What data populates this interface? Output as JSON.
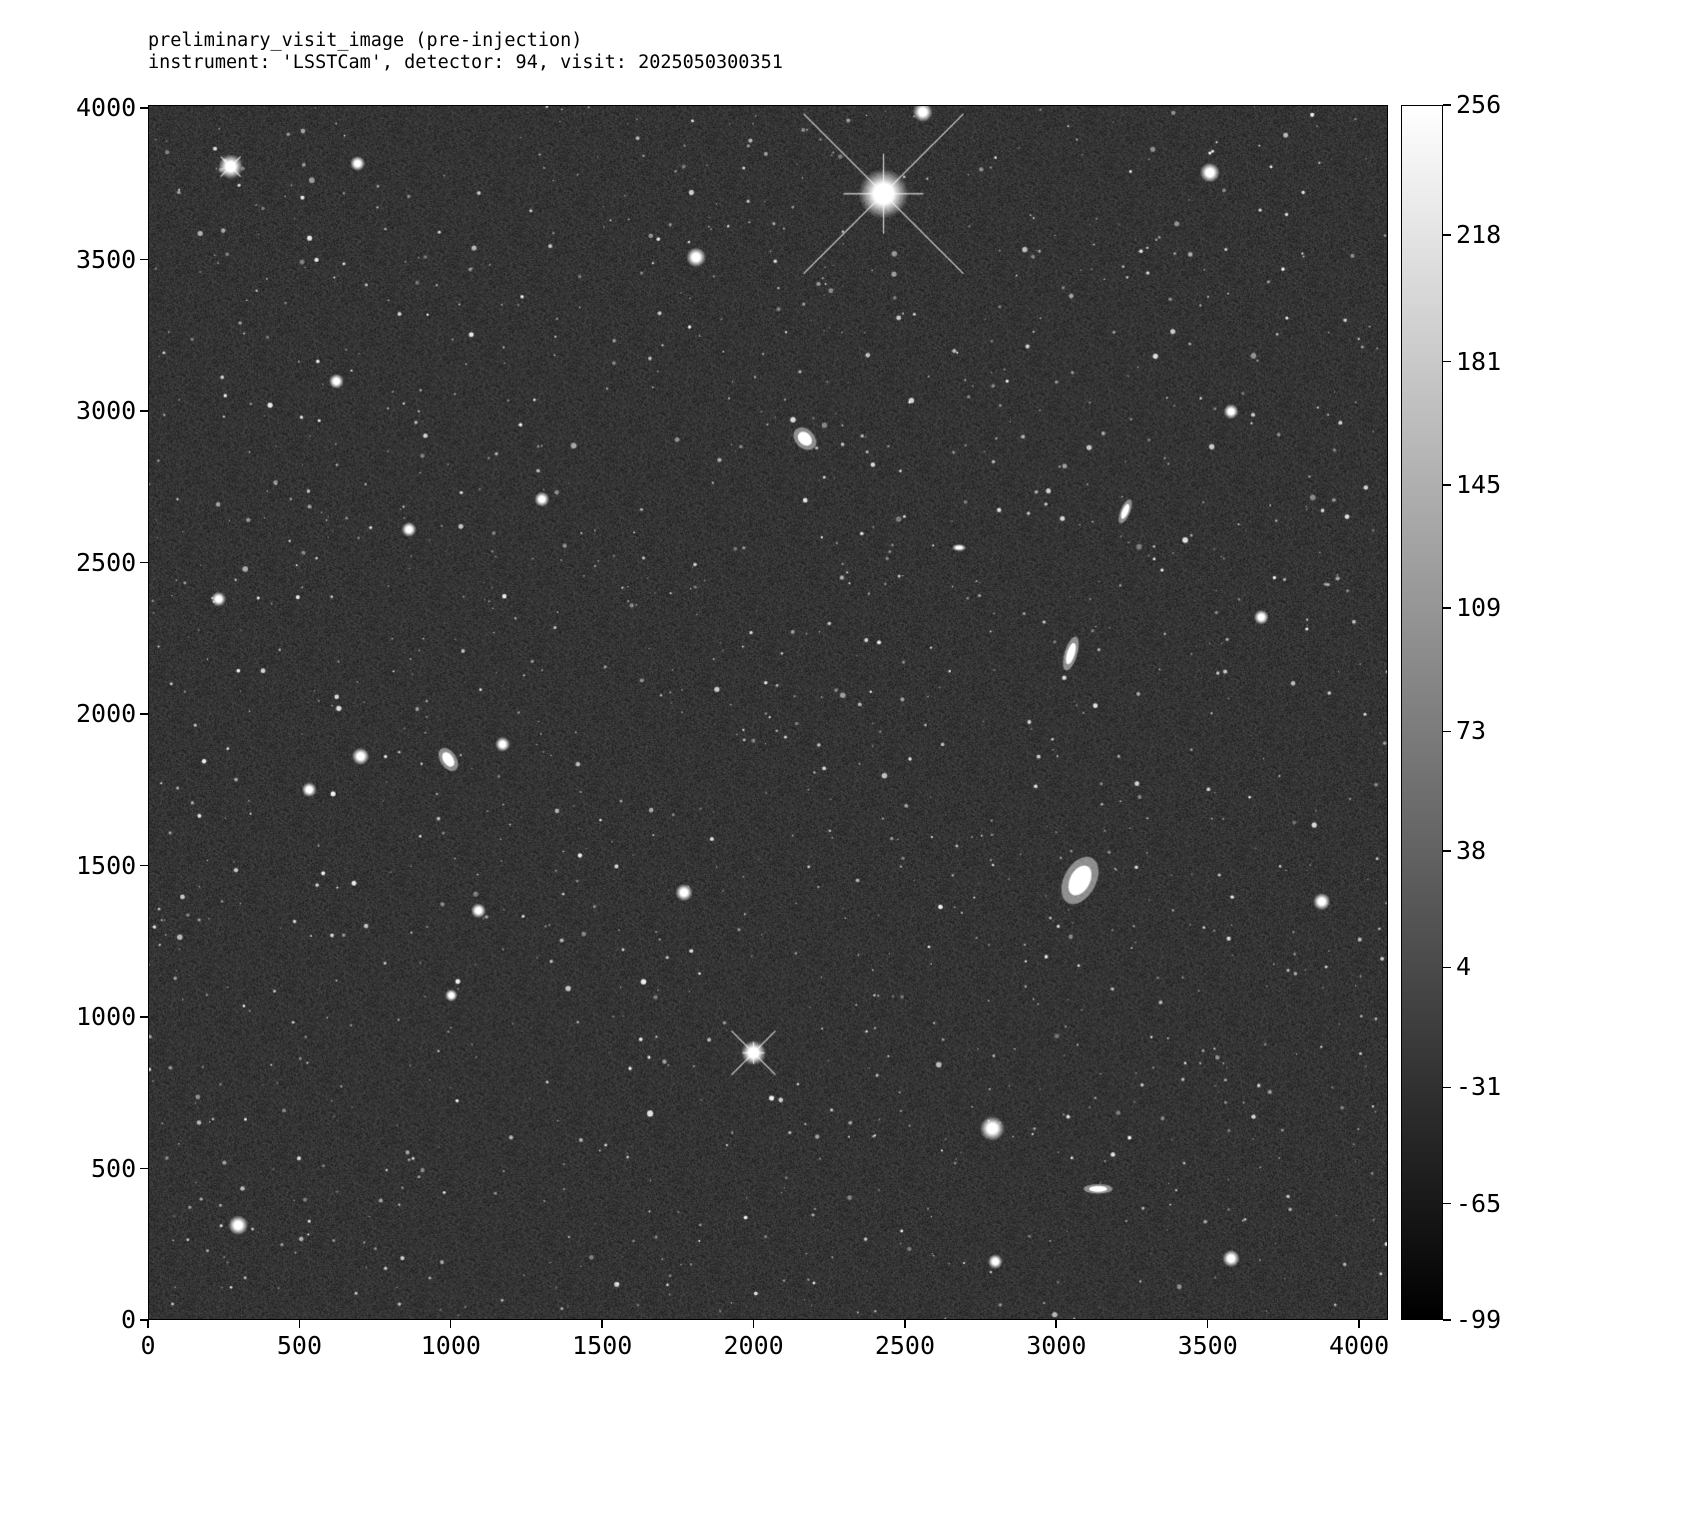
{
  "title": {
    "line1": "preliminary_visit_image (pre-injection)",
    "line2": "instrument: 'LSSTCam', detector: 94, visit: 2025050300351"
  },
  "image": {
    "colormap": "gray",
    "x_range": [
      0,
      4096
    ],
    "y_range": [
      0,
      4010
    ],
    "x_ticks": [
      "0",
      "500",
      "1000",
      "1500",
      "2000",
      "2500",
      "3000",
      "3500",
      "4000"
    ],
    "y_ticks": [
      "0",
      "500",
      "1000",
      "1500",
      "2000",
      "2500",
      "3000",
      "3500",
      "4000"
    ]
  },
  "colorbar": {
    "range": [
      -99,
      256
    ],
    "ticks": [
      "256",
      "218",
      "181",
      "145",
      "109",
      "73",
      "38",
      "4",
      "-31",
      "-65",
      "-99"
    ]
  }
}
